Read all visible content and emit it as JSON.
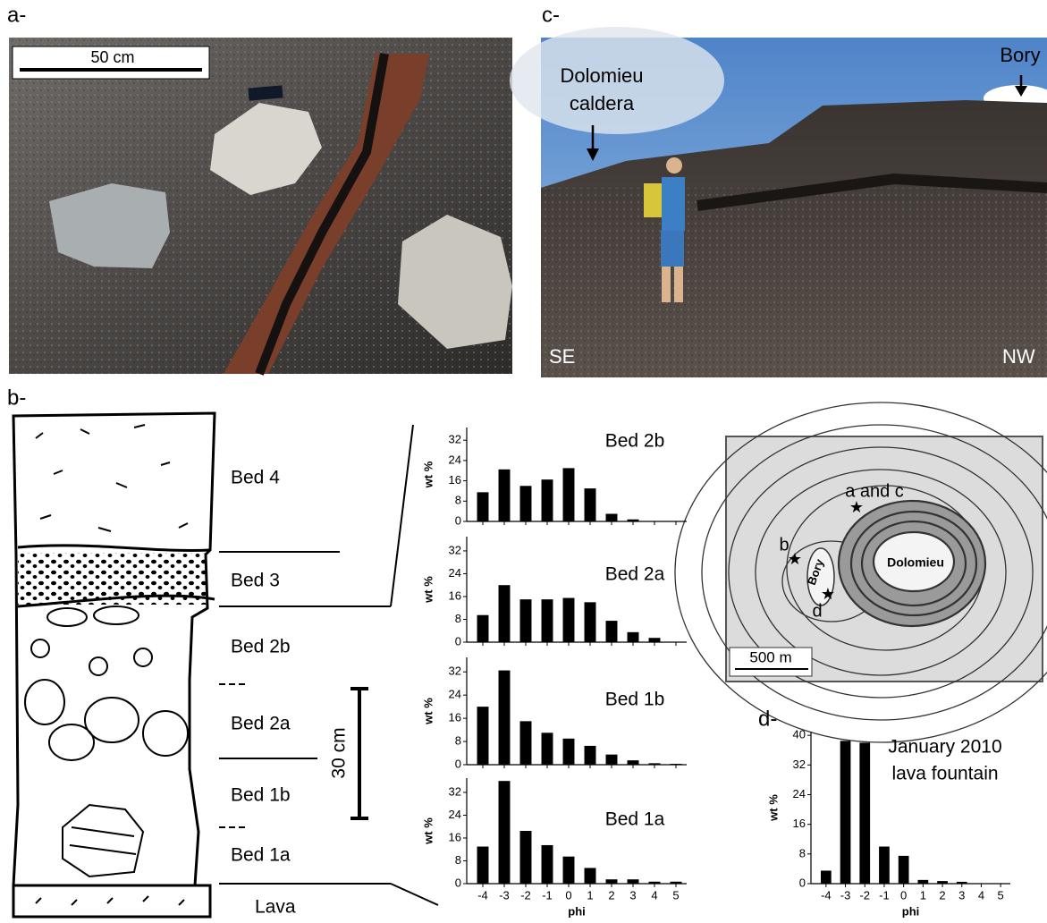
{
  "panel_a": {
    "label": "a-",
    "scale_bar": "50 cm"
  },
  "panel_c": {
    "label": "c-",
    "annotations": [
      "Dolomieu",
      "caldera",
      "Bory",
      "SE",
      "NW"
    ]
  },
  "panel_b": {
    "label": "b-",
    "beds": [
      "Bed 4",
      "Bed 3",
      "Bed 2b",
      "Bed 2a",
      "Bed 1b",
      "Bed 1a",
      "Lava"
    ],
    "scale_bar": "30 cm"
  },
  "panel_map": {
    "sites": [
      "a and c",
      "b",
      "d"
    ],
    "places": [
      "Bory",
      "Dolomieu"
    ],
    "scale_bar": "500 m"
  },
  "panel_d": {
    "label": "d-"
  },
  "chart_data": [
    {
      "type": "bar",
      "title": [
        "Bed 2b"
      ],
      "ylabel": "wt %",
      "color": "#000",
      "ylim": [
        0,
        37
      ],
      "yticks": [
        0,
        8,
        16,
        24,
        32
      ],
      "values": [
        11.5,
        20.5,
        14,
        16.5,
        21,
        13,
        3,
        0.8,
        0,
        0
      ]
    },
    {
      "type": "bar",
      "title": [
        "Bed 2a"
      ],
      "ylabel": "wt %",
      "color": "#000",
      "ylim": [
        0,
        37
      ],
      "yticks": [
        0,
        8,
        16,
        24,
        32
      ],
      "values": [
        9.5,
        20,
        15,
        15,
        15.5,
        14,
        7.5,
        3.5,
        1.5,
        0
      ]
    },
    {
      "type": "bar",
      "title": [
        "Bed 1b"
      ],
      "ylabel": "wt %",
      "color": "#000",
      "ylim": [
        0,
        37
      ],
      "yticks": [
        0,
        8,
        16,
        24,
        32
      ],
      "values": [
        20,
        32.5,
        15,
        11,
        9,
        6.5,
        3.5,
        1.5,
        0.5,
        0.3
      ]
    },
    {
      "type": "bar",
      "title": [
        "Bed 1a"
      ],
      "ylabel": "wt %",
      "xlabel": "phi",
      "color": "#000",
      "ylim": [
        0,
        37
      ],
      "yticks": [
        0,
        8,
        16,
        24,
        32
      ],
      "categories": [
        "-4",
        "-3",
        "-2",
        "-1",
        "0",
        "1",
        "2",
        "3",
        "4",
        "5"
      ],
      "values": [
        13,
        36,
        18.5,
        13.5,
        9.5,
        5.5,
        1.5,
        1.5,
        0.7,
        0.7
      ]
    },
    {
      "type": "bar",
      "title": [
        "January 2010",
        "lava fountain"
      ],
      "ylabel": "wt %",
      "xlabel": "phi",
      "color": "#000",
      "ylim": [
        0,
        41
      ],
      "yticks": [
        0,
        8,
        16,
        24,
        32,
        40
      ],
      "categories": [
        "-4",
        "-3",
        "-2",
        "-1",
        "0",
        "1",
        "2",
        "3",
        "4",
        "5"
      ],
      "values": [
        3.5,
        38.5,
        38,
        10,
        7.5,
        1,
        0.7,
        0.5,
        0.1,
        0.1
      ]
    }
  ]
}
